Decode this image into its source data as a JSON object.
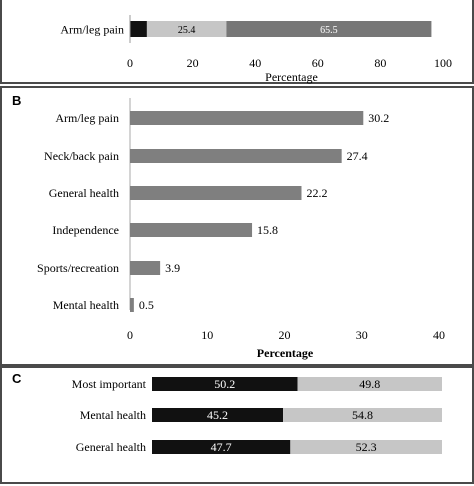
{
  "chart_data": [
    {
      "panel": "A",
      "panel_label": "",
      "type": "bar",
      "stacked": true,
      "orientation": "horizontal",
      "categories": [
        "Arm/leg pain"
      ],
      "series": [
        {
          "values": [
            5.4
          ],
          "color": "#111111"
        },
        {
          "values": [
            25.4
          ],
          "color": "#c6c6c6"
        },
        {
          "values": [
            65.5
          ],
          "color": "#777777"
        }
      ],
      "xlim": [
        0,
        100
      ],
      "xticks": [
        "0",
        "20",
        "40",
        "60",
        "80",
        "100"
      ],
      "xlabel": "Percentage",
      "grid": false
    },
    {
      "panel": "B",
      "panel_label": "B",
      "type": "bar",
      "orientation": "horizontal",
      "categories": [
        "Arm/leg pain",
        "Neck/back pain",
        "General health",
        "Independence",
        "Sports/recreation",
        "Mental health"
      ],
      "values": [
        30.2,
        27.4,
        22.2,
        15.8,
        3.9,
        0.5
      ],
      "value_labels": [
        "30.2",
        "27.4",
        "22.2",
        "15.8",
        "3.9",
        "0.5"
      ],
      "color": "#7f7f7f",
      "xlim": [
        0,
        40
      ],
      "xticks": [
        "0",
        "10",
        "20",
        "30",
        "40"
      ],
      "xlabel": "Percentage",
      "grid": false
    },
    {
      "panel": "C",
      "panel_label": "C",
      "type": "bar",
      "stacked": true,
      "orientation": "horizontal",
      "categories": [
        "Most important",
        "Mental health",
        "General health",
        ""
      ],
      "series": [
        {
          "values": [
            50.2,
            45.2,
            47.7,
            null
          ],
          "color": "#111111"
        },
        {
          "values": [
            49.8,
            54.8,
            52.3,
            null
          ],
          "color": "#c6c6c6"
        }
      ],
      "xlim": [
        0,
        100
      ],
      "grid": false
    }
  ]
}
